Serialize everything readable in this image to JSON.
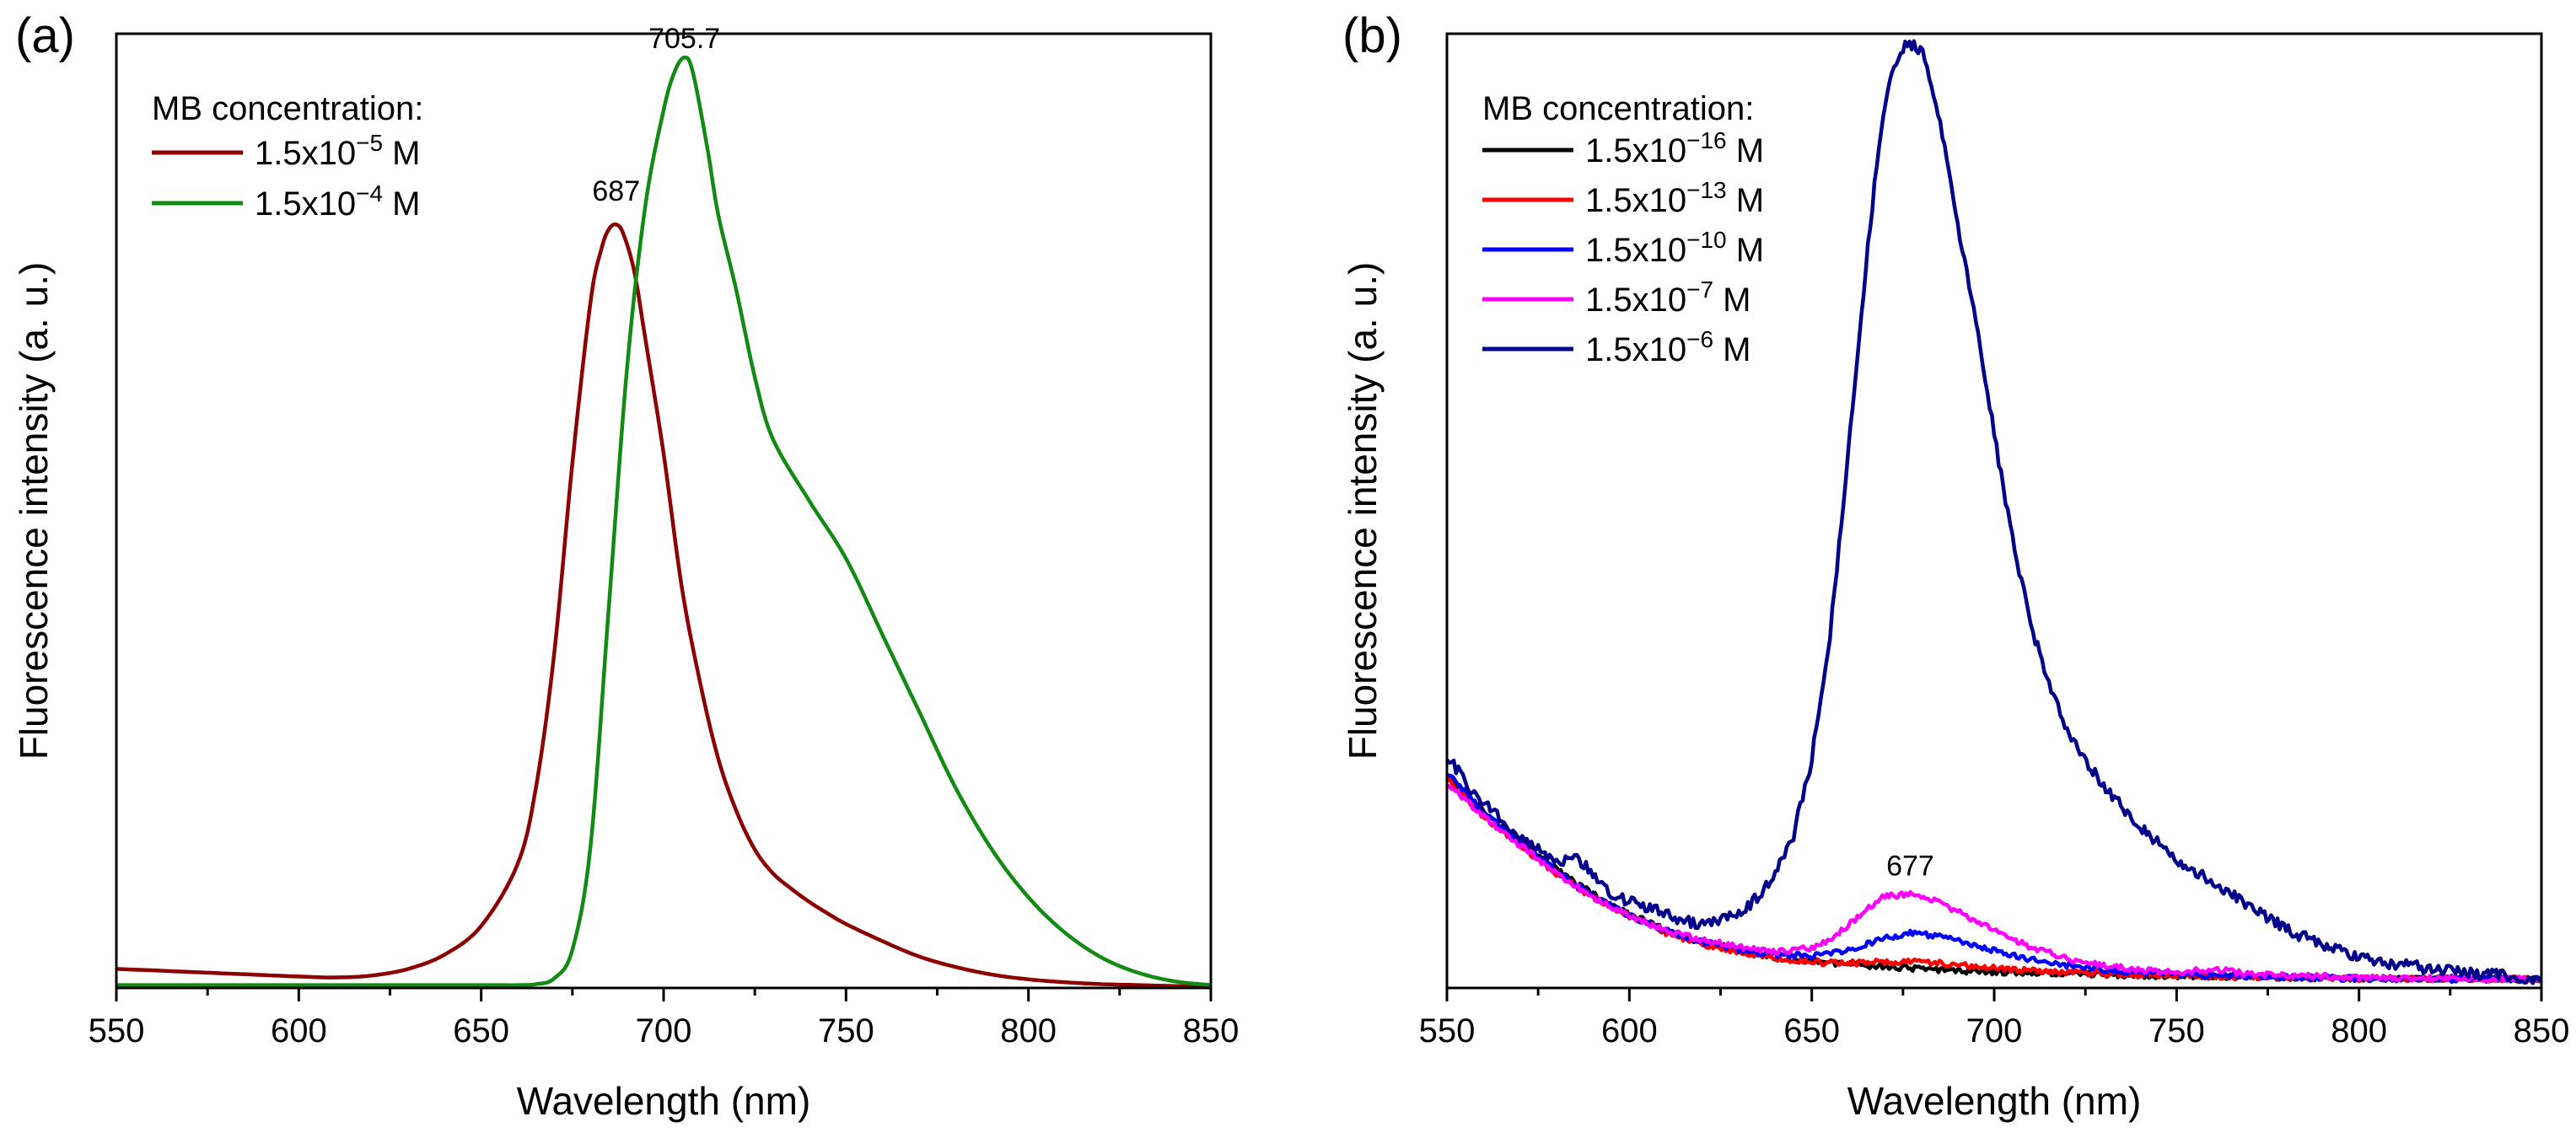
{
  "chart_data": [
    {
      "type": "line",
      "panel_label": "(a)",
      "xlabel": "Wavelength (nm)",
      "ylabel": "Fluorescence intensity (a. u.)",
      "xlim": [
        550,
        850
      ],
      "ylim": [
        0,
        1.0
      ],
      "x_ticks": [
        550,
        600,
        650,
        700,
        750,
        800,
        850
      ],
      "y_ticks_shown": false,
      "legend_title": "MB concentration:",
      "legend_position": "top-left",
      "annotations": [
        {
          "text": "687",
          "x": 687,
          "y": 0.825
        },
        {
          "text": "705.7",
          "x": 705.7,
          "y": 0.985
        }
      ],
      "series": [
        {
          "name_base": "1.5x10",
          "name_exp": "−5",
          "name_unit": " M",
          "color": "#8b0000",
          "x": [
            550,
            575,
            600,
            610,
            620,
            630,
            640,
            650,
            660,
            665,
            670,
            675,
            680,
            683,
            685,
            687,
            689,
            692,
            695,
            700,
            705,
            710,
            715,
            720,
            725,
            730,
            735,
            740,
            745,
            750,
            760,
            770,
            780,
            790,
            800,
            810,
            820,
            830,
            840,
            850
          ],
          "y": [
            0.02,
            0.016,
            0.012,
            0.011,
            0.013,
            0.02,
            0.035,
            0.065,
            0.13,
            0.21,
            0.35,
            0.55,
            0.72,
            0.775,
            0.795,
            0.8,
            0.79,
            0.75,
            0.68,
            0.56,
            0.42,
            0.32,
            0.24,
            0.185,
            0.145,
            0.12,
            0.104,
            0.09,
            0.078,
            0.067,
            0.049,
            0.033,
            0.022,
            0.014,
            0.009,
            0.006,
            0.004,
            0.003,
            0.002,
            0.001
          ]
        },
        {
          "name_base": "1.5x10",
          "name_exp": "−4",
          "name_unit": " M",
          "color": "#138a13",
          "x": [
            550,
            600,
            650,
            660,
            665,
            670,
            675,
            680,
            685,
            690,
            695,
            700,
            703,
            705.7,
            708,
            712,
            715,
            720,
            725,
            730,
            740,
            750,
            760,
            770,
            780,
            790,
            800,
            810,
            820,
            830,
            840,
            850
          ],
          "y": [
            0.003,
            0.003,
            0.003,
            0.003,
            0.004,
            0.01,
            0.04,
            0.15,
            0.4,
            0.65,
            0.82,
            0.92,
            0.96,
            0.975,
            0.96,
            0.88,
            0.81,
            0.73,
            0.64,
            0.575,
            0.51,
            0.45,
            0.37,
            0.29,
            0.21,
            0.145,
            0.095,
            0.058,
            0.032,
            0.016,
            0.007,
            0.003
          ]
        }
      ]
    },
    {
      "type": "line",
      "panel_label": "(b)",
      "xlabel": "Wavelength (nm)",
      "ylabel": "Fluorescence intensity (a. u.)",
      "xlim": [
        550,
        850
      ],
      "ylim": [
        0,
        1.0
      ],
      "x_ticks": [
        550,
        600,
        650,
        700,
        750,
        800,
        850
      ],
      "y_ticks_shown": false,
      "legend_title": "MB concentration:",
      "legend_position": "top-left",
      "annotations": [
        {
          "text": "677",
          "x": 677,
          "y": 0.118
        }
      ],
      "series": [
        {
          "name_base": "1.5x10",
          "name_exp": "−16",
          "name_unit": " M",
          "color": "#000000",
          "x": [
            550,
            560,
            570,
            580,
            590,
            600,
            610,
            620,
            630,
            640,
            650,
            660,
            670,
            680,
            690,
            700,
            720,
            740,
            760,
            780,
            800,
            820,
            850
          ],
          "y": [
            0.225,
            0.185,
            0.155,
            0.125,
            0.098,
            0.078,
            0.06,
            0.048,
            0.04,
            0.032,
            0.028,
            0.025,
            0.022,
            0.02,
            0.018,
            0.017,
            0.015,
            0.013,
            0.012,
            0.011,
            0.01,
            0.01,
            0.009
          ],
          "noise": 0.003
        },
        {
          "name_base": "1.5x10",
          "name_exp": "−13",
          "name_unit": " M",
          "color": "#ff0000",
          "x": [
            550,
            560,
            570,
            580,
            590,
            600,
            610,
            620,
            630,
            640,
            650,
            660,
            670,
            677,
            685,
            695,
            710,
            730,
            750,
            780,
            800,
            820,
            850
          ],
          "y": [
            0.22,
            0.18,
            0.15,
            0.12,
            0.095,
            0.075,
            0.058,
            0.046,
            0.038,
            0.031,
            0.027,
            0.026,
            0.027,
            0.028,
            0.026,
            0.022,
            0.018,
            0.015,
            0.013,
            0.011,
            0.01,
            0.01,
            0.009
          ],
          "noise": 0.003
        },
        {
          "name_base": "1.5x10",
          "name_exp": "−10",
          "name_unit": " M",
          "color": "#0000ff",
          "x": [
            550,
            560,
            570,
            580,
            590,
            600,
            610,
            620,
            630,
            640,
            650,
            660,
            670,
            677,
            685,
            695,
            705,
            715,
            730,
            750,
            780,
            800,
            820,
            850
          ],
          "y": [
            0.225,
            0.185,
            0.152,
            0.122,
            0.096,
            0.076,
            0.06,
            0.048,
            0.04,
            0.035,
            0.034,
            0.04,
            0.052,
            0.058,
            0.054,
            0.044,
            0.034,
            0.026,
            0.019,
            0.014,
            0.011,
            0.01,
            0.009,
            0.009
          ],
          "noise": 0.003
        },
        {
          "name_base": "1.5x10",
          "name_exp": "−7",
          "name_unit": " M",
          "color": "#ff00ff",
          "x": [
            550,
            560,
            570,
            580,
            590,
            600,
            610,
            620,
            630,
            640,
            650,
            655,
            660,
            665,
            670,
            677,
            683,
            690,
            700,
            710,
            720,
            730,
            740,
            750,
            760,
            770,
            780,
            800,
            820,
            850
          ],
          "y": [
            0.215,
            0.18,
            0.15,
            0.12,
            0.095,
            0.076,
            0.06,
            0.05,
            0.043,
            0.038,
            0.042,
            0.05,
            0.066,
            0.082,
            0.096,
            0.098,
            0.092,
            0.08,
            0.06,
            0.043,
            0.031,
            0.024,
            0.019,
            0.016,
            0.02,
            0.014,
            0.013,
            0.011,
            0.01,
            0.009
          ],
          "noise": 0.003
        },
        {
          "name_base": "1.5x10",
          "name_exp": "−6",
          "name_unit": " M",
          "color": "#00008b",
          "x": [
            550,
            555,
            560,
            565,
            570,
            575,
            580,
            585,
            590,
            595,
            600,
            605,
            610,
            615,
            620,
            625,
            630,
            635,
            640,
            645,
            650,
            655,
            660,
            663,
            666,
            669,
            672,
            675,
            678,
            681,
            684,
            687,
            690,
            695,
            700,
            705,
            710,
            715,
            720,
            730,
            740,
            750,
            760,
            770,
            780,
            790,
            800,
            810,
            820,
            830,
            840,
            850
          ],
          "y": [
            0.245,
            0.215,
            0.195,
            0.175,
            0.16,
            0.145,
            0.13,
            0.14,
            0.12,
            0.1,
            0.09,
            0.085,
            0.078,
            0.07,
            0.068,
            0.07,
            0.078,
            0.095,
            0.12,
            0.16,
            0.24,
            0.37,
            0.56,
            0.68,
            0.8,
            0.9,
            0.96,
            0.985,
            0.99,
            0.975,
            0.93,
            0.87,
            0.8,
            0.7,
            0.58,
            0.47,
            0.38,
            0.32,
            0.27,
            0.21,
            0.17,
            0.135,
            0.11,
            0.085,
            0.062,
            0.045,
            0.033,
            0.025,
            0.02,
            0.016,
            0.013,
            0.01
          ],
          "noise": 0.006
        }
      ]
    }
  ]
}
